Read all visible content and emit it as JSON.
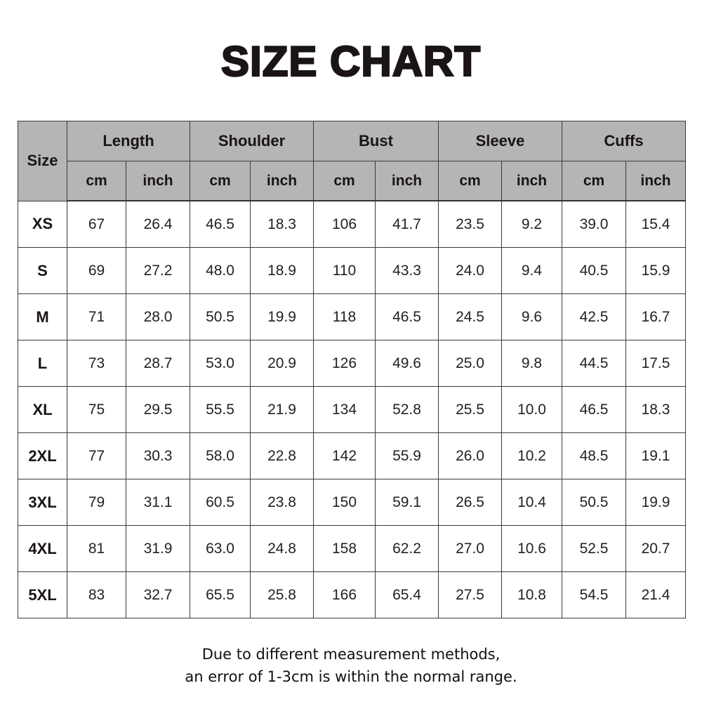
{
  "title": "SIZE CHART",
  "table": {
    "size_header": "Size",
    "groups": [
      "Length",
      "Shoulder",
      "Bust",
      "Sleeve",
      "Cuffs"
    ],
    "units": [
      "cm",
      "inch",
      "cm",
      "inch",
      "cm",
      "inch",
      "cm",
      "inch",
      "cm",
      "inch"
    ],
    "rows": [
      [
        "XS",
        "67",
        "26.4",
        "46.5",
        "18.3",
        "106",
        "41.7",
        "23.5",
        "9.2",
        "39.0",
        "15.4"
      ],
      [
        "S",
        "69",
        "27.2",
        "48.0",
        "18.9",
        "110",
        "43.3",
        "24.0",
        "9.4",
        "40.5",
        "15.9"
      ],
      [
        "M",
        "71",
        "28.0",
        "50.5",
        "19.9",
        "118",
        "46.5",
        "24.5",
        "9.6",
        "42.5",
        "16.7"
      ],
      [
        "L",
        "73",
        "28.7",
        "53.0",
        "20.9",
        "126",
        "49.6",
        "25.0",
        "9.8",
        "44.5",
        "17.5"
      ],
      [
        "XL",
        "75",
        "29.5",
        "55.5",
        "21.9",
        "134",
        "52.8",
        "25.5",
        "10.0",
        "46.5",
        "18.3"
      ],
      [
        "2XL",
        "77",
        "30.3",
        "58.0",
        "22.8",
        "142",
        "55.9",
        "26.0",
        "10.2",
        "48.5",
        "19.1"
      ],
      [
        "3XL",
        "79",
        "31.1",
        "60.5",
        "23.8",
        "150",
        "59.1",
        "26.5",
        "10.4",
        "50.5",
        "19.9"
      ],
      [
        "4XL",
        "81",
        "31.9",
        "63.0",
        "24.8",
        "158",
        "62.2",
        "27.0",
        "10.6",
        "52.5",
        "20.7"
      ],
      [
        "5XL",
        "83",
        "32.7",
        "65.5",
        "25.8",
        "166",
        "65.4",
        "27.5",
        "10.8",
        "54.5",
        "21.4"
      ]
    ]
  },
  "note": {
    "line1": "Due to different measurement methods,",
    "line2": "an error of 1-3cm is within the normal range."
  },
  "colors": {
    "header_bg": "#b5b5b5",
    "text": "#1a1414"
  }
}
